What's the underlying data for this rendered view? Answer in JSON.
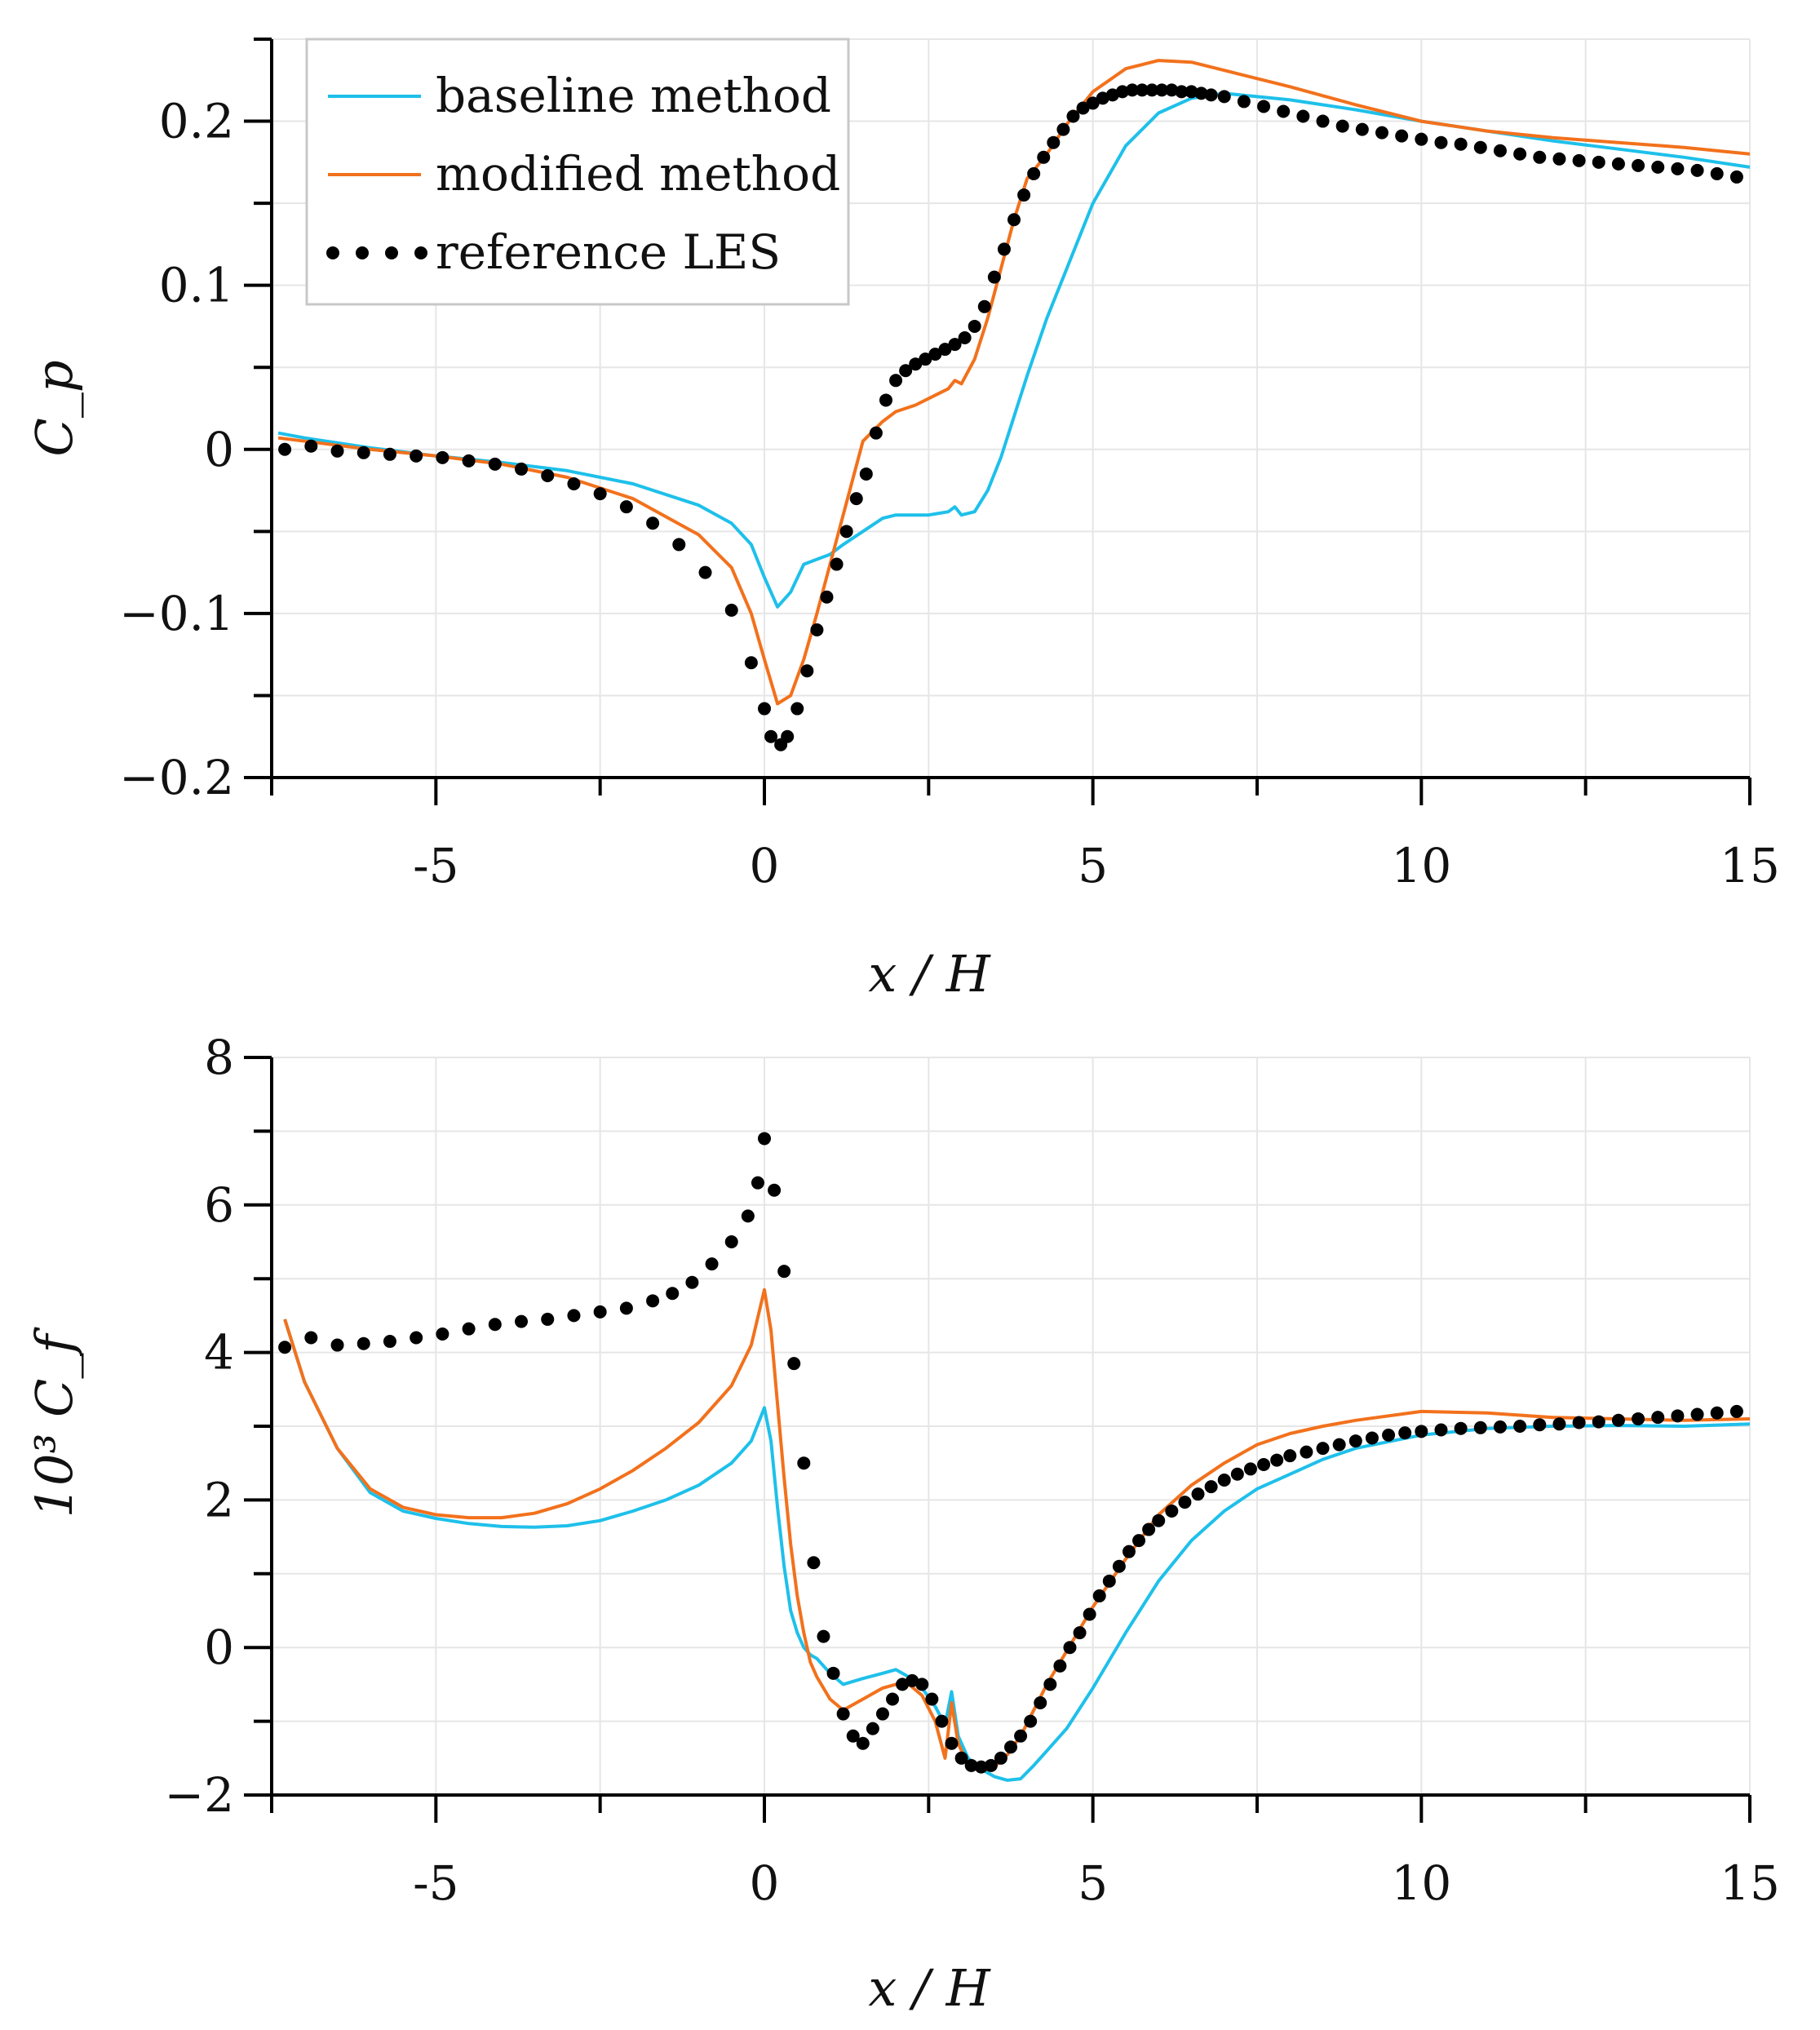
{
  "chart_data": [
    {
      "type": "line",
      "title": "",
      "xlabel": "x / H",
      "ylabel": "C_p",
      "xlim": [
        -7.5,
        15
      ],
      "ylim": [
        -0.2,
        0.25
      ],
      "xticks": [
        -5,
        0,
        5,
        10,
        15
      ],
      "xtick_labels": [
        "-5",
        "0",
        "5",
        "10",
        "15"
      ],
      "yticks": [
        -0.2,
        -0.1,
        0,
        0.1,
        0.2
      ],
      "ytick_labels": [
        "−0.2",
        "−0.1",
        "0",
        "0.1",
        "0.2"
      ],
      "grid": true,
      "legend": {
        "placement": "top-left",
        "entries": [
          {
            "label": "baseline method",
            "style": "line"
          },
          {
            "label": "modified method",
            "style": "line"
          },
          {
            "label": "reference LES",
            "style": "dots"
          }
        ]
      },
      "series": [
        {
          "name": "baseline method",
          "color": "#1ec0ea",
          "style": "line",
          "x": [
            -7.4,
            -7,
            -6,
            -5,
            -4,
            -3,
            -2,
            -1,
            -0.5,
            -0.2,
            0,
            0.2,
            0.4,
            0.6,
            0.8,
            1.0,
            1.2,
            1.5,
            1.8,
            2.0,
            2.5,
            2.8,
            2.9,
            3.0,
            3.2,
            3.4,
            3.6,
            3.8,
            4.0,
            4.3,
            4.6,
            5.0,
            5.5,
            6.0,
            6.5,
            7.0,
            7.5,
            8,
            9,
            10,
            11,
            12,
            13,
            14,
            15
          ],
          "y": [
            0.01,
            0.007,
            0.001,
            -0.004,
            -0.008,
            -0.013,
            -0.021,
            -0.034,
            -0.045,
            -0.058,
            -0.078,
            -0.096,
            -0.087,
            -0.07,
            -0.067,
            -0.064,
            -0.058,
            -0.05,
            -0.042,
            -0.04,
            -0.04,
            -0.038,
            -0.035,
            -0.04,
            -0.038,
            -0.025,
            -0.005,
            0.02,
            0.045,
            0.08,
            0.11,
            0.15,
            0.185,
            0.205,
            0.214,
            0.217,
            0.215,
            0.213,
            0.207,
            0.2,
            0.194,
            0.188,
            0.183,
            0.178,
            0.172
          ]
        },
        {
          "name": "modified method",
          "color": "#f2711c",
          "style": "line",
          "x": [
            -7.4,
            -7,
            -6,
            -5,
            -4,
            -3,
            -2,
            -1,
            -0.5,
            -0.2,
            0,
            0.2,
            0.4,
            0.6,
            0.8,
            1.0,
            1.2,
            1.5,
            1.8,
            2.0,
            2.3,
            2.6,
            2.8,
            2.9,
            3.0,
            3.2,
            3.4,
            3.6,
            3.8,
            4.0,
            4.3,
            4.6,
            5.0,
            5.5,
            6.0,
            6.5,
            7.0,
            8,
            9,
            10,
            11,
            12,
            13,
            14,
            15
          ],
          "y": [
            0.007,
            0.005,
            0.0,
            -0.004,
            -0.009,
            -0.017,
            -0.03,
            -0.052,
            -0.072,
            -0.1,
            -0.128,
            -0.155,
            -0.15,
            -0.128,
            -0.1,
            -0.07,
            -0.04,
            0.005,
            0.017,
            0.023,
            0.027,
            0.033,
            0.037,
            0.042,
            0.04,
            0.055,
            0.08,
            0.11,
            0.14,
            0.165,
            0.18,
            0.198,
            0.218,
            0.232,
            0.237,
            0.236,
            0.231,
            0.221,
            0.21,
            0.2,
            0.194,
            0.19,
            0.187,
            0.184,
            0.18
          ]
        },
        {
          "name": "reference LES",
          "color": "#000000",
          "style": "dots",
          "x": [
            -7.3,
            -6.9,
            -6.5,
            -6.1,
            -5.7,
            -5.3,
            -4.9,
            -4.5,
            -4.1,
            -3.7,
            -3.3,
            -2.9,
            -2.5,
            -2.1,
            -1.7,
            -1.3,
            -0.9,
            -0.5,
            -0.2,
            0.0,
            0.1,
            0.25,
            0.35,
            0.5,
            0.65,
            0.8,
            0.95,
            1.1,
            1.25,
            1.4,
            1.55,
            1.7,
            1.85,
            2.0,
            2.15,
            2.3,
            2.45,
            2.6,
            2.75,
            2.9,
            3.05,
            3.2,
            3.35,
            3.5,
            3.65,
            3.8,
            3.95,
            4.1,
            4.25,
            4.4,
            4.55,
            4.7,
            4.85,
            5.0,
            5.15,
            5.3,
            5.45,
            5.6,
            5.75,
            5.9,
            6.05,
            6.2,
            6.35,
            6.5,
            6.65,
            6.8,
            7.0,
            7.3,
            7.6,
            7.9,
            8.2,
            8.5,
            8.8,
            9.1,
            9.4,
            9.7,
            10.0,
            10.3,
            10.6,
            10.9,
            11.2,
            11.5,
            11.8,
            12.1,
            12.4,
            12.7,
            13.0,
            13.3,
            13.6,
            13.9,
            14.2,
            14.5,
            14.8
          ],
          "y": [
            0.0,
            0.002,
            -0.001,
            -0.002,
            -0.003,
            -0.004,
            -0.005,
            -0.007,
            -0.009,
            -0.012,
            -0.016,
            -0.021,
            -0.027,
            -0.035,
            -0.045,
            -0.058,
            -0.075,
            -0.098,
            -0.13,
            -0.158,
            -0.175,
            -0.18,
            -0.175,
            -0.158,
            -0.135,
            -0.11,
            -0.09,
            -0.07,
            -0.05,
            -0.03,
            -0.015,
            0.01,
            0.03,
            0.042,
            0.048,
            0.052,
            0.055,
            0.058,
            0.061,
            0.064,
            0.068,
            0.075,
            0.087,
            0.105,
            0.122,
            0.14,
            0.155,
            0.168,
            0.178,
            0.187,
            0.195,
            0.203,
            0.208,
            0.211,
            0.214,
            0.216,
            0.218,
            0.219,
            0.219,
            0.219,
            0.219,
            0.219,
            0.218,
            0.218,
            0.217,
            0.216,
            0.215,
            0.212,
            0.209,
            0.206,
            0.203,
            0.2,
            0.197,
            0.195,
            0.193,
            0.191,
            0.189,
            0.187,
            0.186,
            0.184,
            0.182,
            0.18,
            0.178,
            0.177,
            0.176,
            0.175,
            0.174,
            0.173,
            0.172,
            0.171,
            0.17,
            0.168,
            0.166
          ]
        }
      ]
    },
    {
      "type": "line",
      "title": "",
      "xlabel": "x / H",
      "ylabel": "10³ C_f",
      "xlim": [
        -7.5,
        15
      ],
      "ylim": [
        -2,
        8
      ],
      "xticks": [
        -5,
        0,
        5,
        10,
        15
      ],
      "xtick_labels": [
        "-5",
        "0",
        "5",
        "10",
        "15"
      ],
      "yticks": [
        -2,
        0,
        2,
        4,
        6,
        8
      ],
      "ytick_labels": [
        "−2",
        "0",
        "2",
        "4",
        "6",
        "8"
      ],
      "grid": true,
      "series": [
        {
          "name": "baseline method",
          "color": "#1ec0ea",
          "style": "line",
          "x": [
            -7.3,
            -7.0,
            -6.5,
            -6.0,
            -5.5,
            -5.0,
            -4.5,
            -4.0,
            -3.5,
            -3.0,
            -2.5,
            -2.0,
            -1.5,
            -1.0,
            -0.5,
            -0.2,
            0.0,
            0.1,
            0.2,
            0.3,
            0.4,
            0.5,
            0.6,
            0.7,
            0.8,
            1.0,
            1.2,
            1.5,
            1.8,
            2.0,
            2.2,
            2.4,
            2.6,
            2.75,
            2.85,
            2.95,
            3.1,
            3.3,
            3.5,
            3.7,
            3.9,
            4.1,
            4.3,
            4.6,
            5.0,
            5.5,
            6.0,
            6.5,
            7.0,
            7.5,
            8.0,
            8.5,
            9.0,
            10.0,
            11.0,
            12.0,
            13.0,
            14.0,
            15.0
          ],
          "y": [
            4.45,
            3.6,
            2.7,
            2.1,
            1.85,
            1.75,
            1.68,
            1.64,
            1.63,
            1.65,
            1.72,
            1.85,
            2.0,
            2.2,
            2.5,
            2.8,
            3.25,
            2.8,
            1.9,
            1.1,
            0.5,
            0.2,
            0.0,
            -0.1,
            -0.15,
            -0.35,
            -0.5,
            -0.42,
            -0.35,
            -0.3,
            -0.4,
            -0.55,
            -0.8,
            -1.05,
            -0.6,
            -1.2,
            -1.5,
            -1.65,
            -1.75,
            -1.8,
            -1.78,
            -1.6,
            -1.4,
            -1.1,
            -0.55,
            0.2,
            0.9,
            1.45,
            1.85,
            2.15,
            2.35,
            2.55,
            2.7,
            2.88,
            2.97,
            3.0,
            3.01,
            3.0,
            3.03
          ]
        },
        {
          "name": "modified method",
          "color": "#f2711c",
          "style": "line",
          "x": [
            -7.3,
            -7.0,
            -6.5,
            -6.0,
            -5.5,
            -5.0,
            -4.5,
            -4.0,
            -3.5,
            -3.0,
            -2.5,
            -2.0,
            -1.5,
            -1.0,
            -0.5,
            -0.2,
            0.0,
            0.1,
            0.2,
            0.3,
            0.4,
            0.5,
            0.6,
            0.7,
            0.8,
            1.0,
            1.2,
            1.5,
            1.8,
            2.0,
            2.2,
            2.4,
            2.6,
            2.75,
            2.85,
            2.95,
            3.1,
            3.3,
            3.5,
            3.7,
            3.9,
            4.1,
            4.3,
            4.6,
            5.0,
            5.5,
            6.0,
            6.5,
            7.0,
            7.5,
            8.0,
            8.5,
            9.0,
            10.0,
            11.0,
            12.0,
            13.0,
            14.0,
            15.0
          ],
          "y": [
            4.45,
            3.6,
            2.7,
            2.15,
            1.9,
            1.8,
            1.76,
            1.76,
            1.82,
            1.95,
            2.15,
            2.4,
            2.7,
            3.05,
            3.55,
            4.1,
            4.85,
            4.3,
            3.3,
            2.3,
            1.4,
            0.7,
            0.2,
            -0.2,
            -0.4,
            -0.7,
            -0.85,
            -0.7,
            -0.55,
            -0.5,
            -0.5,
            -0.65,
            -1.0,
            -1.5,
            -0.75,
            -1.3,
            -1.6,
            -1.68,
            -1.62,
            -1.45,
            -1.2,
            -0.85,
            -0.5,
            -0.05,
            0.55,
            1.2,
            1.8,
            2.2,
            2.5,
            2.75,
            2.9,
            3.0,
            3.08,
            3.2,
            3.18,
            3.12,
            3.1,
            3.08,
            3.1
          ]
        },
        {
          "name": "reference LES",
          "color": "#000000",
          "style": "dots",
          "x": [
            -7.3,
            -6.9,
            -6.5,
            -6.1,
            -5.7,
            -5.3,
            -4.9,
            -4.5,
            -4.1,
            -3.7,
            -3.3,
            -2.9,
            -2.5,
            -2.1,
            -1.7,
            -1.4,
            -1.1,
            -0.8,
            -0.5,
            -0.25,
            -0.1,
            0.0,
            0.15,
            0.3,
            0.45,
            0.6,
            0.75,
            0.9,
            1.05,
            1.2,
            1.35,
            1.5,
            1.65,
            1.8,
            1.95,
            2.1,
            2.25,
            2.4,
            2.55,
            2.7,
            2.85,
            3.0,
            3.15,
            3.3,
            3.45,
            3.6,
            3.75,
            3.9,
            4.05,
            4.2,
            4.35,
            4.5,
            4.65,
            4.8,
            4.95,
            5.1,
            5.25,
            5.4,
            5.55,
            5.7,
            5.85,
            6.0,
            6.2,
            6.4,
            6.6,
            6.8,
            7.0,
            7.2,
            7.4,
            7.6,
            7.8,
            8.0,
            8.25,
            8.5,
            8.75,
            9.0,
            9.25,
            9.5,
            9.75,
            10.0,
            10.3,
            10.6,
            10.9,
            11.2,
            11.5,
            11.8,
            12.1,
            12.4,
            12.7,
            13.0,
            13.3,
            13.6,
            13.9,
            14.2,
            14.5,
            14.8
          ],
          "y": [
            4.07,
            4.2,
            4.1,
            4.12,
            4.15,
            4.2,
            4.25,
            4.32,
            4.38,
            4.42,
            4.45,
            4.5,
            4.55,
            4.6,
            4.7,
            4.8,
            4.95,
            5.2,
            5.5,
            5.85,
            6.3,
            6.9,
            6.2,
            5.1,
            3.85,
            2.5,
            1.15,
            0.15,
            -0.35,
            -0.9,
            -1.2,
            -1.3,
            -1.1,
            -0.9,
            -0.7,
            -0.5,
            -0.45,
            -0.5,
            -0.7,
            -1.0,
            -1.3,
            -1.5,
            -1.6,
            -1.62,
            -1.6,
            -1.5,
            -1.35,
            -1.2,
            -1.0,
            -0.75,
            -0.5,
            -0.25,
            0.0,
            0.2,
            0.45,
            0.7,
            0.9,
            1.1,
            1.3,
            1.45,
            1.6,
            1.72,
            1.85,
            1.97,
            2.08,
            2.18,
            2.27,
            2.35,
            2.42,
            2.48,
            2.54,
            2.6,
            2.65,
            2.7,
            2.75,
            2.8,
            2.84,
            2.88,
            2.91,
            2.93,
            2.95,
            2.97,
            2.98,
            2.99,
            3.0,
            3.02,
            3.03,
            3.05,
            3.06,
            3.08,
            3.1,
            3.12,
            3.14,
            3.16,
            3.18,
            3.2
          ]
        }
      ]
    }
  ]
}
